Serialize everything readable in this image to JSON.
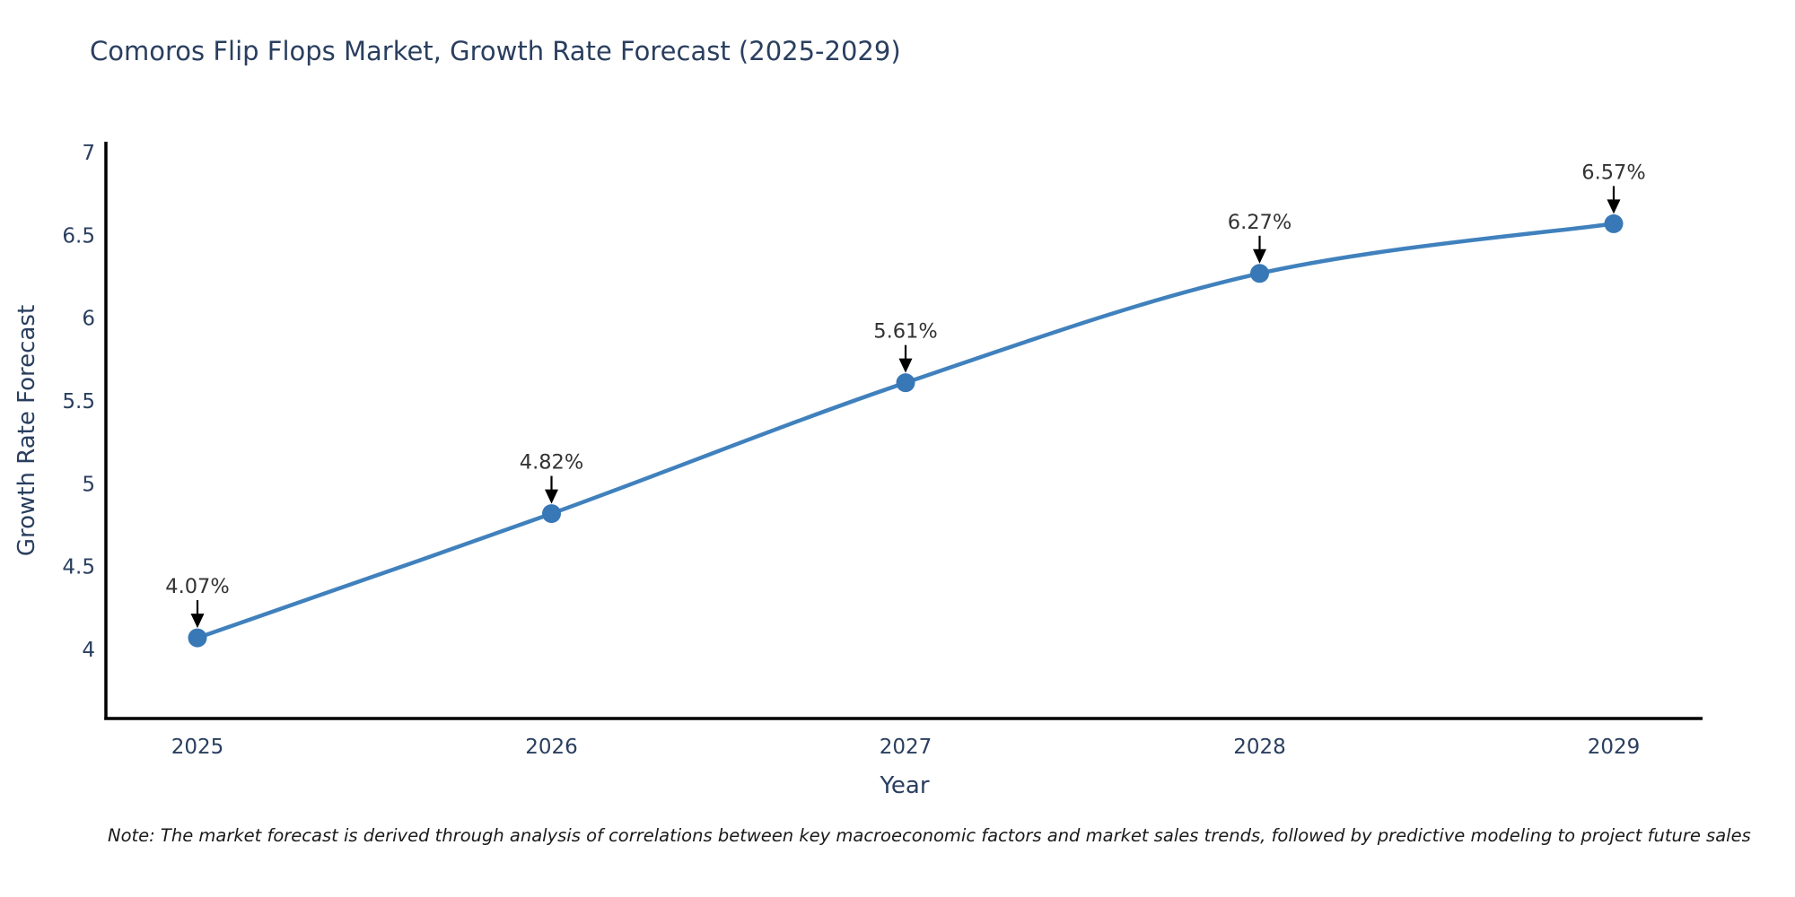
{
  "title": "Comoros Flip Flops Market, Growth Rate Forecast (2025-2029)",
  "note": "Note: The market forecast is derived through analysis of correlations between key macroeconomic factors and market sales trends, followed by predictive modeling to project future sales",
  "chart_data": {
    "type": "line",
    "title": "Comoros Flip Flops Market, Growth Rate Forecast (2025-2029)",
    "xlabel": "Year",
    "ylabel": "Growth Rate Forecast",
    "x": [
      2025,
      2026,
      2027,
      2028,
      2029
    ],
    "values": [
      4.07,
      4.82,
      5.61,
      6.27,
      6.57
    ],
    "point_labels": [
      "4.07%",
      "4.82%",
      "5.61%",
      "6.27%",
      "6.57%"
    ],
    "x_ticks": [
      "2025",
      "2026",
      "2027",
      "2028",
      "2029"
    ],
    "y_ticks": [
      "4",
      "4.5",
      "5",
      "5.5",
      "6",
      "6.5",
      "7"
    ],
    "ylim": [
      3.55,
      7.05
    ],
    "grid": false,
    "legend_position": "none",
    "colors": {
      "line": "#4081bd",
      "marker": "#3878b6",
      "axis": "#000000",
      "tick_text": "#2a3f5f",
      "axis_title_text": "#2a3f5f",
      "annotation_text": "#333333",
      "annotation_arrow": "#000000",
      "title_text": "#2a3f5f"
    }
  }
}
